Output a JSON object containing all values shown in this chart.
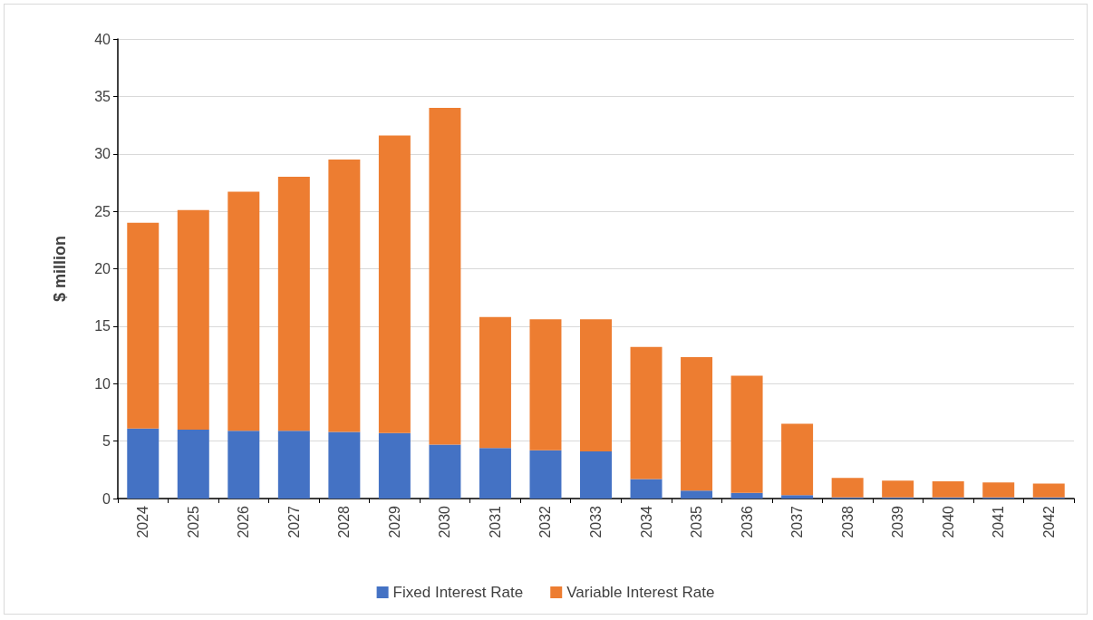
{
  "chart_data": {
    "type": "bar",
    "stacked": true,
    "ylabel": "$ million",
    "categories": [
      "2024",
      "2025",
      "2026",
      "2027",
      "2028",
      "2029",
      "2030",
      "2031",
      "2032",
      "2033",
      "2034",
      "2035",
      "2036",
      "2037",
      "2038",
      "2039",
      "2040",
      "2041",
      "2042"
    ],
    "series": [
      {
        "name": "Fixed Interest Rate",
        "color": "#4472c4",
        "values": [
          6.1,
          6.0,
          5.9,
          5.9,
          5.8,
          5.7,
          4.7,
          4.4,
          4.2,
          4.1,
          1.7,
          0.7,
          0.5,
          0.3,
          0.1,
          0.1,
          0.1,
          0.1,
          0.1
        ]
      },
      {
        "name": "Variable Interest Rate",
        "color": "#ed7d31",
        "values": [
          17.9,
          19.1,
          20.8,
          22.1,
          23.7,
          25.9,
          29.3,
          11.4,
          11.4,
          11.5,
          11.5,
          11.6,
          10.2,
          6.2,
          1.7,
          1.45,
          1.4,
          1.3,
          1.2
        ]
      }
    ],
    "ylim": [
      0,
      40
    ],
    "yticks": [
      0,
      5,
      10,
      15,
      20,
      25,
      30,
      35,
      40
    ],
    "grid": "y",
    "legend": "bottom"
  }
}
